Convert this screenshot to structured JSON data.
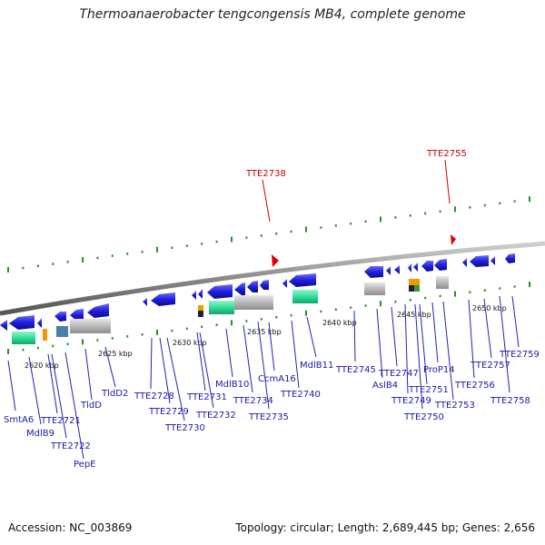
{
  "title": "Thermoanaerobacter tengcongensis MB4, complete genome",
  "footer": {
    "accession": "Accession: NC_003869",
    "summary": "Topology: circular; Length: 2,689,445 bp; Genes: 2,656"
  },
  "ticks": [
    "2620 kbp",
    "2625 kbp",
    "2630 kbp",
    "2635 kbp",
    "2640 kbp",
    "2645 kbp",
    "2650 kbp"
  ],
  "markers": [
    "TTE2738",
    "TTE2755"
  ],
  "genes": [
    "SmtA6",
    "MdlB9",
    "TTE2721",
    "TTE2722",
    "PepE",
    "TldD",
    "TldD2",
    "TTE2728",
    "TTE2729",
    "TTE2730",
    "TTE2731",
    "TTE2732",
    "MdlB10",
    "TTE2734",
    "TTE2735",
    "CcmA16",
    "TTE2740",
    "MdlB11",
    "TTE2745",
    "AslB4",
    "TTE2747",
    "TTE2749",
    "TTE2750",
    "TTE2751",
    "ProP14",
    "TTE2753",
    "TTE2756",
    "TTE2757",
    "TTE2758",
    "TTE2759"
  ],
  "colors": {
    "gene_blue": "#1f1fe0",
    "label_blue": "#1a1aa6",
    "marker_red": "#cc0000",
    "tick_green": "#2e8b2e",
    "backbone": "#8a8a8a",
    "cds_green": "#33dd99",
    "cds_gray": "#b8b8b8",
    "cds_orange": "#f09a00",
    "cds_steel": "#4a7fa8"
  }
}
